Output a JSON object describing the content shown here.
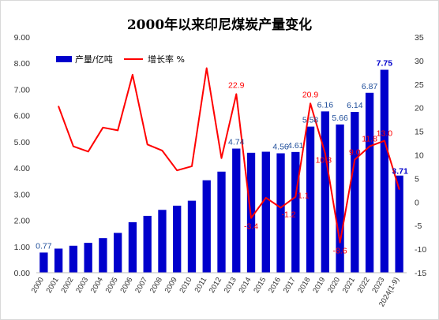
{
  "chart_data": {
    "type": "bar+line",
    "title": "2000年以来印尼煤炭产量变化",
    "categories": [
      "2000",
      "2001",
      "2002",
      "2003",
      "2004",
      "2005",
      "2006",
      "2007",
      "2008",
      "2009",
      "2010",
      "2011",
      "2012",
      "2013",
      "2014",
      "2015",
      "2016",
      "2017",
      "2018",
      "2019",
      "2020",
      "2021",
      "2022",
      "2023",
      "2024(1-9)"
    ],
    "series": [
      {
        "name": "产量/亿吨",
        "type": "bar",
        "axis": "left",
        "color": "#0000cc",
        "values": [
          0.77,
          0.92,
          1.03,
          1.14,
          1.32,
          1.52,
          1.93,
          2.17,
          2.4,
          2.56,
          2.75,
          3.53,
          3.86,
          4.74,
          4.58,
          4.62,
          4.56,
          4.61,
          5.58,
          6.16,
          5.66,
          6.14,
          6.87,
          7.75,
          3.71
        ]
      },
      {
        "name": "增长率 %",
        "type": "line",
        "axis": "right",
        "color": "#ff0000",
        "values": [
          null,
          20.3,
          11.8,
          10.7,
          15.8,
          15.2,
          27.0,
          12.2,
          10.9,
          6.7,
          7.6,
          28.4,
          9.3,
          22.9,
          -3.4,
          0.9,
          -1.2,
          1.1,
          20.9,
          10.3,
          -8.6,
          9.0,
          11.8,
          13.0,
          2.7
        ]
      }
    ],
    "bar_labels": [
      {
        "index": 0,
        "text": "0.77",
        "color": "#1f4e9a"
      },
      {
        "index": 13,
        "text": "4.74",
        "color": "#1f4e9a"
      },
      {
        "index": 16,
        "text": "4.56",
        "color": "#1f4e9a"
      },
      {
        "index": 17,
        "text": "4.61",
        "color": "#1f4e9a"
      },
      {
        "index": 18,
        "text": "5.58",
        "color": "#1f4e9a"
      },
      {
        "index": 19,
        "text": "6.16",
        "color": "#1f4e9a"
      },
      {
        "index": 20,
        "text": "5.66",
        "color": "#1f4e9a"
      },
      {
        "index": 21,
        "text": "6.14",
        "color": "#1f4e9a"
      },
      {
        "index": 22,
        "text": "6.87",
        "color": "#1f4e9a"
      },
      {
        "index": 23,
        "text": "7.75",
        "color": "#0000cc",
        "bold": true
      },
      {
        "index": 24,
        "text": "3.71",
        "color": "#0000cc",
        "bold": true
      }
    ],
    "line_labels": [
      {
        "index": 13,
        "text": "22.9"
      },
      {
        "index": 14,
        "text": "-3.4"
      },
      {
        "index": 17,
        "text": "1.1"
      },
      {
        "index": 16,
        "text": "-1.2"
      },
      {
        "index": 18,
        "text": "20.9"
      },
      {
        "index": 19,
        "text": "10.3"
      },
      {
        "index": 20,
        "text": "-8.6"
      },
      {
        "index": 21,
        "text": "9.0"
      },
      {
        "index": 22,
        "text": "11.8"
      },
      {
        "index": 23,
        "text": "13.0"
      }
    ],
    "y_left": {
      "min": 0,
      "max": 9,
      "step": 1,
      "decimals": 2
    },
    "y_right": {
      "min": -15,
      "max": 35,
      "step": 5
    },
    "grid": false,
    "legend": {
      "position": "top-left",
      "entries": [
        "产量/亿吨",
        "增长率 %"
      ]
    }
  }
}
